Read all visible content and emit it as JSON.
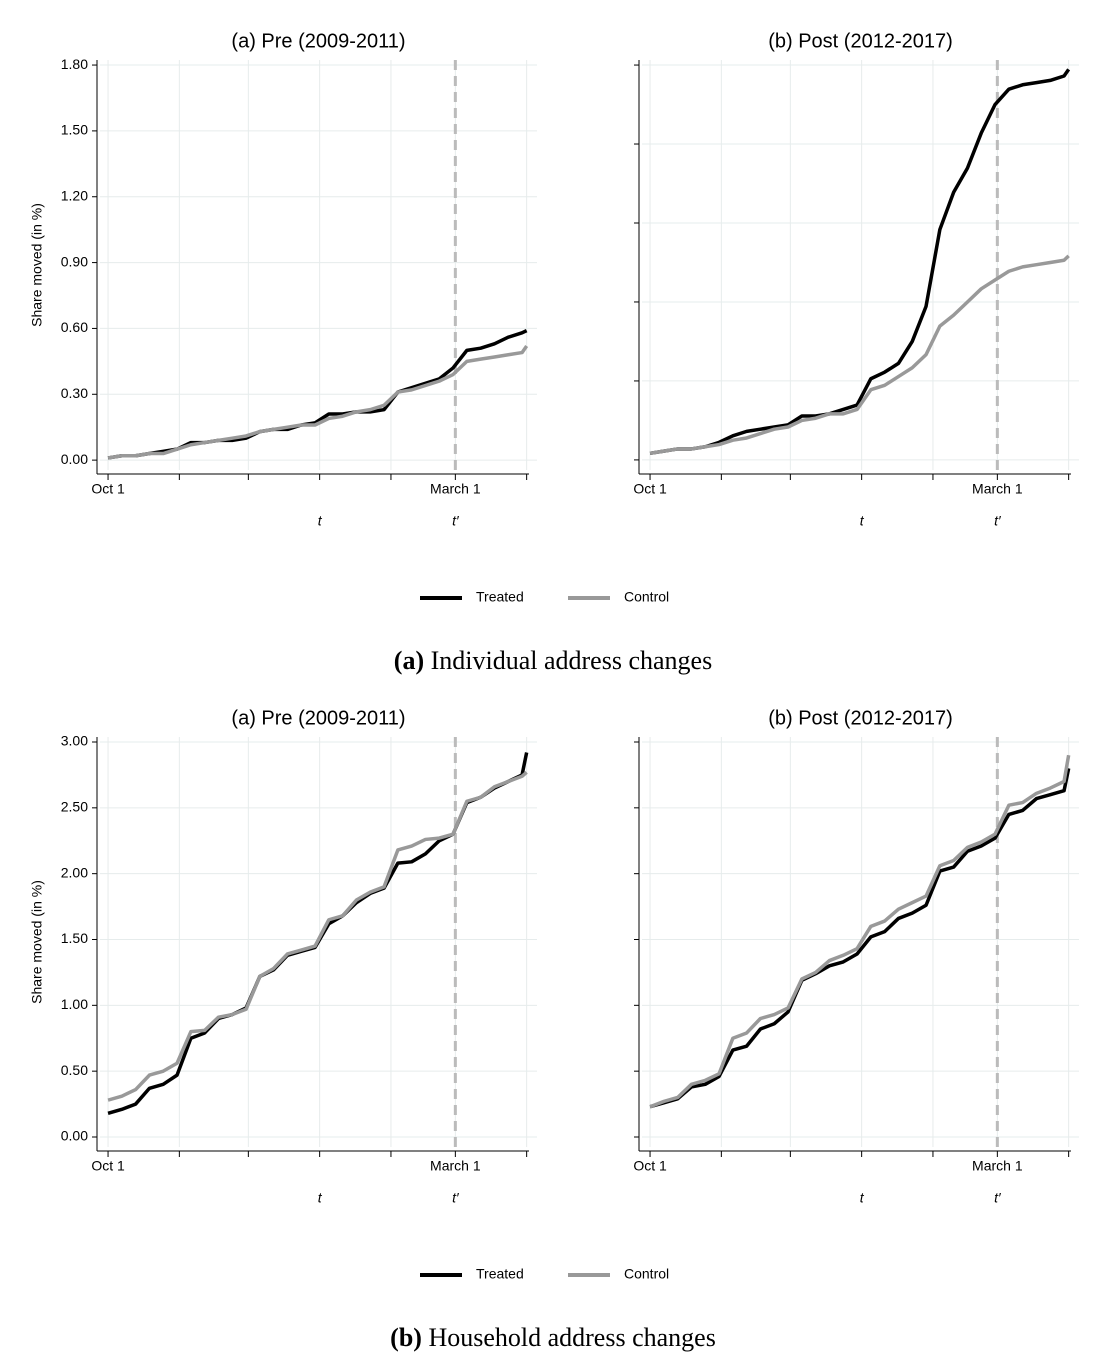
{
  "chart_data": [
    {
      "type": "line",
      "title": "(a) Pre (2009-2011)",
      "ylabel": "Share moved (in %)",
      "legend": true,
      "x": [
        0,
        6,
        12,
        18,
        24,
        30,
        36,
        42,
        48,
        54,
        60,
        66,
        72,
        78,
        84,
        90,
        96,
        102,
        108,
        114,
        120,
        126,
        132,
        138,
        144,
        150,
        156,
        162,
        168,
        174,
        180,
        182
      ],
      "xlim": [
        -3.5,
        186.5
      ],
      "xticks": [
        {
          "value": 0,
          "label": "Oct 1"
        },
        {
          "value": 31,
          "label": null
        },
        {
          "value": 61,
          "label": null
        },
        {
          "value": 92,
          "label": null
        },
        {
          "value": 123,
          "label": null
        },
        {
          "value": 151,
          "label": "March 1"
        },
        {
          "value": 182,
          "label": null
        }
      ],
      "ylim": [
        -0.045,
        1.823
      ],
      "yticks": [
        {
          "value": 0,
          "label": "0.00"
        },
        {
          "value": 0.3,
          "label": "0.30"
        },
        {
          "value": 0.6,
          "label": "0.60"
        },
        {
          "value": 0.9,
          "label": "0.90"
        },
        {
          "value": 1.2,
          "label": "1.20"
        },
        {
          "value": 1.5,
          "label": "1.50"
        },
        {
          "value": 1.8,
          "label": "1.80"
        }
      ],
      "ytick_labels": true,
      "grid": true,
      "vline": {
        "x": 151,
        "color": "#bbbbbb"
      },
      "annotations": [
        {
          "text": "t",
          "x": 92
        },
        {
          "text": "t′",
          "x": 151
        }
      ],
      "series": [
        {
          "name": "Treated",
          "color": "#000000",
          "values": [
            0.01,
            0.02,
            0.02,
            0.03,
            0.04,
            0.05,
            0.08,
            0.08,
            0.09,
            0.09,
            0.1,
            0.13,
            0.14,
            0.14,
            0.16,
            0.17,
            0.21,
            0.21,
            0.22,
            0.22,
            0.23,
            0.31,
            0.33,
            0.35,
            0.37,
            0.42,
            0.5,
            0.51,
            0.53,
            0.56,
            0.58,
            0.59
          ]
        },
        {
          "name": "Control",
          "color": "#999999",
          "values": [
            0.01,
            0.02,
            0.02,
            0.03,
            0.03,
            0.05,
            0.07,
            0.08,
            0.09,
            0.1,
            0.11,
            0.13,
            0.14,
            0.15,
            0.16,
            0.16,
            0.19,
            0.2,
            0.22,
            0.23,
            0.25,
            0.31,
            0.32,
            0.34,
            0.36,
            0.39,
            0.45,
            0.46,
            0.47,
            0.48,
            0.49,
            0.52
          ]
        }
      ]
    },
    {
      "type": "line",
      "title": "(b) Post (2012-2017)",
      "x": [
        0,
        6,
        12,
        18,
        24,
        30,
        36,
        42,
        48,
        54,
        60,
        66,
        72,
        78,
        84,
        90,
        96,
        102,
        108,
        114,
        120,
        126,
        132,
        138,
        144,
        150,
        156,
        162,
        168,
        174,
        180,
        182
      ],
      "xlim": [
        -3.5,
        186.5
      ],
      "xticks": [
        {
          "value": 0,
          "label": "Oct 1"
        },
        {
          "value": 31,
          "label": null
        },
        {
          "value": 61,
          "label": null
        },
        {
          "value": 92,
          "label": null
        },
        {
          "value": 123,
          "label": null
        },
        {
          "value": 151,
          "label": "March 1"
        },
        {
          "value": 182,
          "label": null
        }
      ],
      "ylim": [
        -0.046,
        1.823
      ],
      "yticks": [
        0,
        0.36,
        0.72,
        1.08,
        1.44,
        1.8
      ],
      "ytick_labels": false,
      "grid": true,
      "vline": {
        "x": 151,
        "color": "#bbbbbb"
      },
      "annotations": [
        {
          "text": "t",
          "x": 92
        },
        {
          "text": "t′",
          "x": 151
        }
      ],
      "series": [
        {
          "name": "Treated",
          "color": "#000000",
          "values": [
            0.03,
            0.04,
            0.05,
            0.05,
            0.06,
            0.08,
            0.11,
            0.13,
            0.14,
            0.15,
            0.16,
            0.2,
            0.2,
            0.21,
            0.23,
            0.25,
            0.37,
            0.4,
            0.44,
            0.54,
            0.7,
            1.05,
            1.22,
            1.33,
            1.49,
            1.62,
            1.69,
            1.71,
            1.72,
            1.73,
            1.75,
            1.78
          ]
        },
        {
          "name": "Control",
          "color": "#999999",
          "values": [
            0.03,
            0.04,
            0.05,
            0.05,
            0.06,
            0.07,
            0.09,
            0.1,
            0.12,
            0.14,
            0.15,
            0.18,
            0.19,
            0.21,
            0.21,
            0.23,
            0.32,
            0.34,
            0.38,
            0.42,
            0.48,
            0.61,
            0.66,
            0.72,
            0.78,
            0.82,
            0.86,
            0.88,
            0.89,
            0.9,
            0.91,
            0.93
          ]
        }
      ]
    },
    {
      "type": "line",
      "title": "(a) Pre (2009-2011)",
      "ylabel": "Share moved (in %)",
      "legend": true,
      "x": [
        0,
        6,
        12,
        18,
        24,
        30,
        36,
        42,
        48,
        54,
        60,
        66,
        72,
        78,
        84,
        90,
        96,
        102,
        108,
        114,
        120,
        126,
        132,
        138,
        144,
        150,
        156,
        162,
        168,
        174,
        180,
        182
      ],
      "xlim": [
        -3.5,
        186.5
      ],
      "xticks": [
        {
          "value": 0,
          "label": "Oct 1"
        },
        {
          "value": 31,
          "label": null
        },
        {
          "value": 61,
          "label": null
        },
        {
          "value": 92,
          "label": null
        },
        {
          "value": 123,
          "label": null
        },
        {
          "value": 151,
          "label": "March 1"
        },
        {
          "value": 182,
          "label": null
        }
      ],
      "ylim": [
        -0.076,
        3.038
      ],
      "yticks": [
        {
          "value": 0,
          "label": "0.00"
        },
        {
          "value": 0.5,
          "label": "0.50"
        },
        {
          "value": 1,
          "label": "1.00"
        },
        {
          "value": 1.5,
          "label": "1.50"
        },
        {
          "value": 2,
          "label": "2.00"
        },
        {
          "value": 2.5,
          "label": "2.50"
        },
        {
          "value": 3,
          "label": "3.00"
        }
      ],
      "ytick_labels": true,
      "grid": true,
      "vline": {
        "x": 151,
        "color": "#bbbbbb"
      },
      "annotations": [
        {
          "text": "t",
          "x": 92
        },
        {
          "text": "t′",
          "x": 151
        }
      ],
      "series": [
        {
          "name": "Treated",
          "color": "#000000",
          "values": [
            0.18,
            0.21,
            0.25,
            0.37,
            0.4,
            0.47,
            0.75,
            0.79,
            0.9,
            0.93,
            0.98,
            1.22,
            1.27,
            1.38,
            1.41,
            1.44,
            1.62,
            1.68,
            1.78,
            1.85,
            1.89,
            2.08,
            2.09,
            2.15,
            2.25,
            2.3,
            2.54,
            2.58,
            2.65,
            2.7,
            2.75,
            2.92
          ]
        },
        {
          "name": "Control",
          "color": "#999999",
          "values": [
            0.28,
            0.31,
            0.36,
            0.47,
            0.5,
            0.56,
            0.8,
            0.81,
            0.91,
            0.93,
            0.97,
            1.22,
            1.28,
            1.39,
            1.42,
            1.45,
            1.65,
            1.68,
            1.8,
            1.86,
            1.9,
            2.18,
            2.21,
            2.26,
            2.27,
            2.3,
            2.55,
            2.58,
            2.66,
            2.7,
            2.74,
            2.77
          ]
        }
      ]
    },
    {
      "type": "line",
      "title": "(b) Post (2012-2017)",
      "x": [
        0,
        6,
        12,
        18,
        24,
        30,
        36,
        42,
        48,
        54,
        60,
        66,
        72,
        78,
        84,
        90,
        96,
        102,
        108,
        114,
        120,
        126,
        132,
        138,
        144,
        150,
        156,
        162,
        168,
        174,
        180,
        182
      ],
      "xlim": [
        -3.5,
        186.5
      ],
      "xticks": [
        {
          "value": 0,
          "label": "Oct 1"
        },
        {
          "value": 31,
          "label": null
        },
        {
          "value": 61,
          "label": null
        },
        {
          "value": 92,
          "label": null
        },
        {
          "value": 123,
          "label": null
        },
        {
          "value": 151,
          "label": "March 1"
        },
        {
          "value": 182,
          "label": null
        }
      ],
      "ylim": [
        -0.076,
        3.038
      ],
      "yticks": [
        0,
        0.5,
        1,
        1.5,
        2,
        2.5,
        3
      ],
      "ytick_labels": false,
      "grid": true,
      "vline": {
        "x": 151,
        "color": "#bbbbbb"
      },
      "annotations": [
        {
          "text": "t",
          "x": 92
        },
        {
          "text": "t′",
          "x": 151
        }
      ],
      "series": [
        {
          "name": "Treated",
          "color": "#000000",
          "values": [
            0.23,
            0.26,
            0.29,
            0.38,
            0.4,
            0.46,
            0.66,
            0.69,
            0.82,
            0.86,
            0.95,
            1.19,
            1.24,
            1.3,
            1.33,
            1.39,
            1.52,
            1.56,
            1.66,
            1.7,
            1.76,
            2.02,
            2.05,
            2.17,
            2.21,
            2.27,
            2.45,
            2.48,
            2.57,
            2.6,
            2.63,
            2.8
          ]
        },
        {
          "name": "Control",
          "color": "#999999",
          "values": [
            0.23,
            0.27,
            0.3,
            0.4,
            0.43,
            0.48,
            0.75,
            0.79,
            0.9,
            0.93,
            0.98,
            1.2,
            1.25,
            1.34,
            1.38,
            1.43,
            1.6,
            1.64,
            1.73,
            1.78,
            1.83,
            2.06,
            2.1,
            2.2,
            2.24,
            2.3,
            2.52,
            2.54,
            2.61,
            2.65,
            2.7,
            2.9
          ]
        }
      ]
    }
  ],
  "captions": [
    {
      "label": "(a)",
      "text": "Individual address changes"
    },
    {
      "label": "(b)",
      "text": "Household address changes"
    }
  ]
}
